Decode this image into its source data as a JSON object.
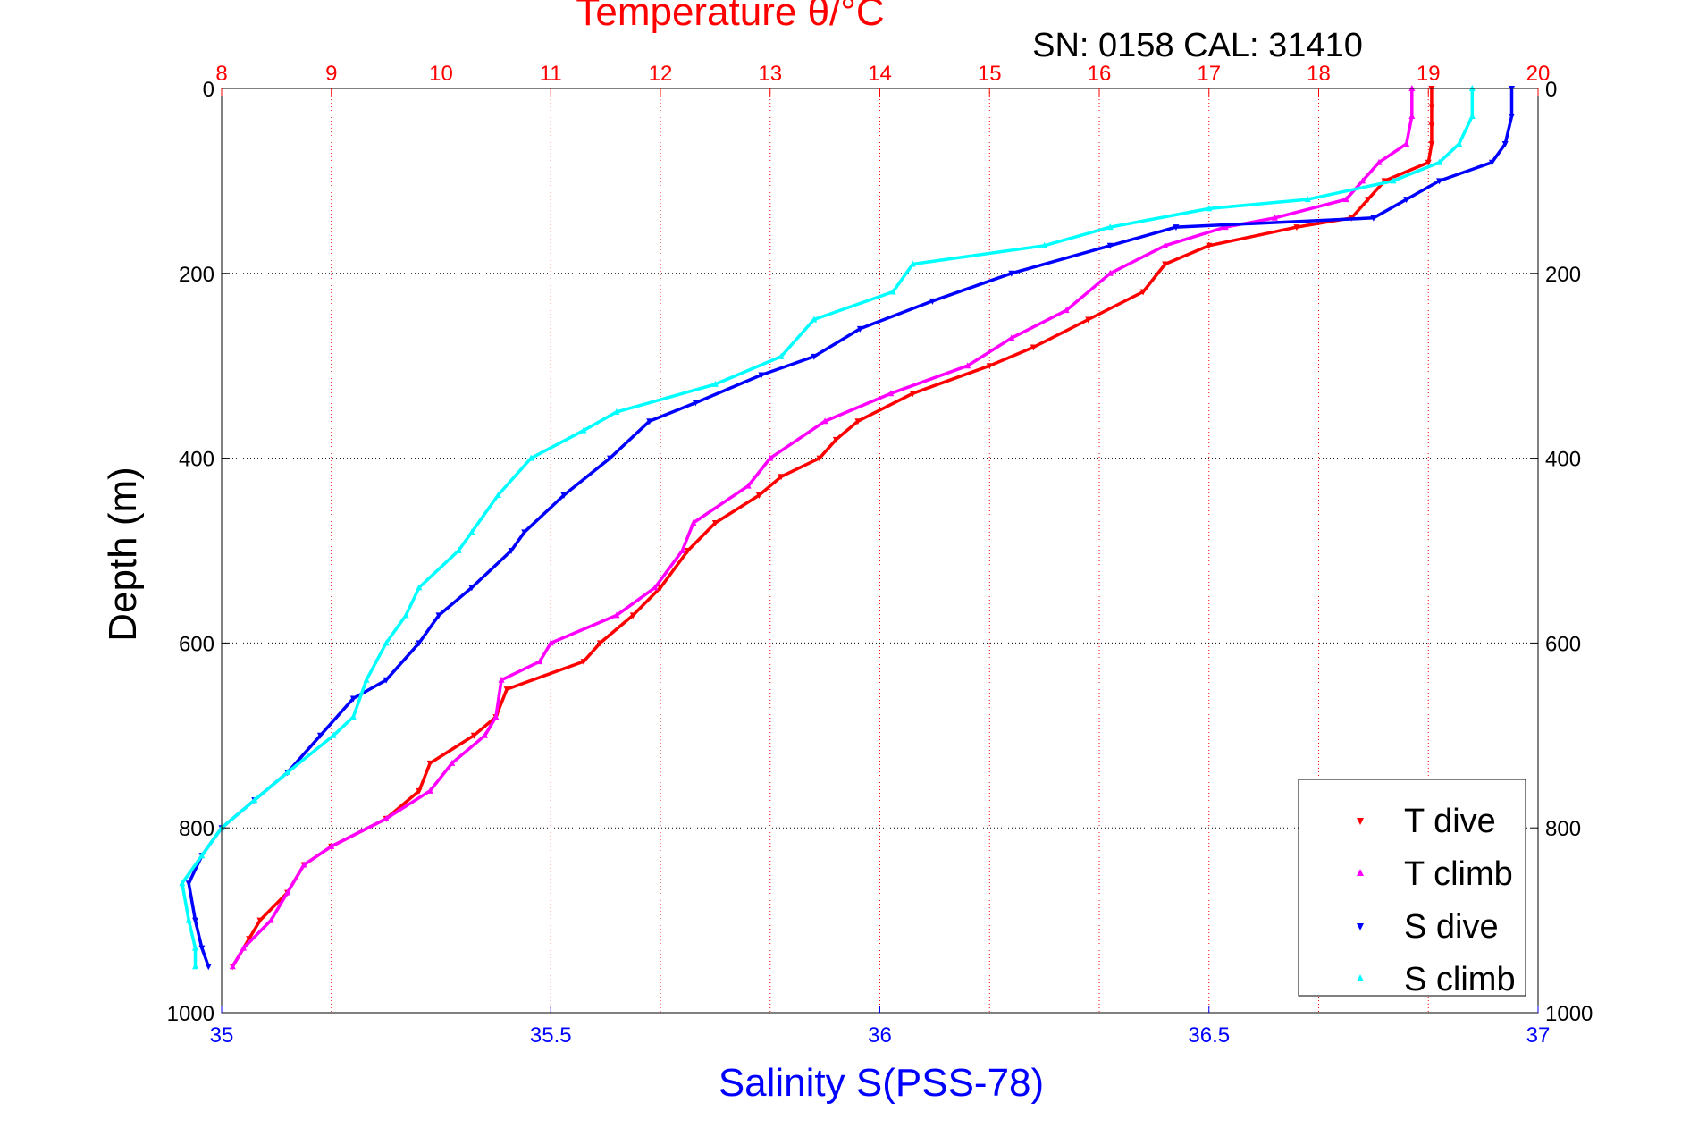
{
  "chart_data": {
    "type": "scatter",
    "title": "Temperature θ/°C",
    "subtitle": "SN: 0158  CAL: 31410",
    "ylabel": "Depth (m)",
    "xlabel": "Salinity S(PSS-78)",
    "top_axis": {
      "label": "Temperature θ/°C",
      "lim": [
        8,
        20
      ],
      "ticks": [
        "8",
        "9",
        "10",
        "11",
        "12",
        "13",
        "14",
        "15",
        "16",
        "17",
        "18",
        "19",
        "20"
      ]
    },
    "bottom_axis": {
      "label": "Salinity S(PSS-78)",
      "lim": [
        35,
        37
      ],
      "ticks": [
        "35",
        "35.5",
        "36",
        "36.5",
        "37"
      ]
    },
    "y_axis": {
      "lim": [
        0,
        1000
      ],
      "reversed": true,
      "ticks": [
        "0",
        "200",
        "400",
        "600",
        "800",
        "1000"
      ]
    },
    "grid": true,
    "legend_position": "bottom-right",
    "series": [
      {
        "name": "T dive",
        "axis": "temperature",
        "color": "#ff0000",
        "marker": "down-triangle",
        "points": [
          [
            0,
            19.03
          ],
          [
            20,
            19.03
          ],
          [
            40,
            19.03
          ],
          [
            60,
            19.03
          ],
          [
            80,
            19.0
          ],
          [
            100,
            18.6
          ],
          [
            120,
            18.45
          ],
          [
            140,
            18.3
          ],
          [
            150,
            17.8
          ],
          [
            170,
            17.0
          ],
          [
            190,
            16.6
          ],
          [
            220,
            16.4
          ],
          [
            250,
            15.9
          ],
          [
            280,
            15.4
          ],
          [
            300,
            15.0
          ],
          [
            330,
            14.3
          ],
          [
            360,
            13.8
          ],
          [
            380,
            13.6
          ],
          [
            400,
            13.45
          ],
          [
            420,
            13.1
          ],
          [
            440,
            12.9
          ],
          [
            470,
            12.5
          ],
          [
            500,
            12.25
          ],
          [
            540,
            12.0
          ],
          [
            570,
            11.75
          ],
          [
            600,
            11.45
          ],
          [
            620,
            11.3
          ],
          [
            650,
            10.6
          ],
          [
            680,
            10.5
          ],
          [
            700,
            10.3
          ],
          [
            730,
            9.9
          ],
          [
            760,
            9.8
          ],
          [
            790,
            9.5
          ],
          [
            820,
            9.0
          ],
          [
            840,
            8.75
          ],
          [
            870,
            8.6
          ],
          [
            900,
            8.35
          ],
          [
            920,
            8.25
          ],
          [
            950,
            8.1
          ]
        ]
      },
      {
        "name": "T climb",
        "axis": "temperature",
        "color": "#ff00ff",
        "marker": "up-triangle",
        "points": [
          [
            0,
            18.85
          ],
          [
            30,
            18.85
          ],
          [
            60,
            18.8
          ],
          [
            80,
            18.55
          ],
          [
            100,
            18.4
          ],
          [
            120,
            18.25
          ],
          [
            140,
            17.6
          ],
          [
            150,
            17.15
          ],
          [
            170,
            16.6
          ],
          [
            200,
            16.1
          ],
          [
            240,
            15.7
          ],
          [
            270,
            15.2
          ],
          [
            300,
            14.8
          ],
          [
            330,
            14.1
          ],
          [
            360,
            13.5
          ],
          [
            400,
            13.0
          ],
          [
            430,
            12.8
          ],
          [
            470,
            12.3
          ],
          [
            500,
            12.2
          ],
          [
            540,
            11.95
          ],
          [
            570,
            11.6
          ],
          [
            600,
            11.0
          ],
          [
            620,
            10.9
          ],
          [
            640,
            10.55
          ],
          [
            680,
            10.5
          ],
          [
            700,
            10.4
          ],
          [
            730,
            10.1
          ],
          [
            760,
            9.9
          ],
          [
            790,
            9.5
          ],
          [
            820,
            9.0
          ],
          [
            840,
            8.75
          ],
          [
            870,
            8.6
          ],
          [
            900,
            8.45
          ],
          [
            930,
            8.2
          ],
          [
            950,
            8.1
          ]
        ]
      },
      {
        "name": "S dive",
        "axis": "salinity",
        "color": "#0000ff",
        "marker": "down-triangle",
        "points": [
          [
            0,
            36.96
          ],
          [
            30,
            36.96
          ],
          [
            60,
            36.95
          ],
          [
            80,
            36.93
          ],
          [
            100,
            36.85
          ],
          [
            120,
            36.8
          ],
          [
            140,
            36.75
          ],
          [
            150,
            36.45
          ],
          [
            170,
            36.35
          ],
          [
            200,
            36.2
          ],
          [
            230,
            36.08
          ],
          [
            260,
            35.97
          ],
          [
            290,
            35.9
          ],
          [
            310,
            35.82
          ],
          [
            340,
            35.72
          ],
          [
            360,
            35.65
          ],
          [
            400,
            35.59
          ],
          [
            440,
            35.52
          ],
          [
            480,
            35.46
          ],
          [
            500,
            35.44
          ],
          [
            540,
            35.38
          ],
          [
            570,
            35.33
          ],
          [
            600,
            35.3
          ],
          [
            640,
            35.25
          ],
          [
            660,
            35.2
          ],
          [
            700,
            35.15
          ],
          [
            740,
            35.1
          ],
          [
            770,
            35.05
          ],
          [
            800,
            35.0
          ],
          [
            830,
            34.97
          ],
          [
            860,
            34.95
          ],
          [
            900,
            34.96
          ],
          [
            930,
            34.97
          ],
          [
            950,
            34.98
          ]
        ]
      },
      {
        "name": "S climb",
        "axis": "salinity",
        "color": "#00ffff",
        "marker": "up-triangle",
        "points": [
          [
            0,
            36.9
          ],
          [
            30,
            36.9
          ],
          [
            60,
            36.88
          ],
          [
            80,
            36.85
          ],
          [
            100,
            36.78
          ],
          [
            120,
            36.65
          ],
          [
            130,
            36.5
          ],
          [
            150,
            36.35
          ],
          [
            170,
            36.25
          ],
          [
            190,
            36.05
          ],
          [
            220,
            36.02
          ],
          [
            250,
            35.9
          ],
          [
            290,
            35.85
          ],
          [
            320,
            35.75
          ],
          [
            350,
            35.6
          ],
          [
            370,
            35.55
          ],
          [
            400,
            35.47
          ],
          [
            440,
            35.42
          ],
          [
            480,
            35.38
          ],
          [
            500,
            35.36
          ],
          [
            540,
            35.3
          ],
          [
            570,
            35.28
          ],
          [
            600,
            35.25
          ],
          [
            640,
            35.22
          ],
          [
            680,
            35.2
          ],
          [
            700,
            35.17
          ],
          [
            740,
            35.1
          ],
          [
            770,
            35.05
          ],
          [
            800,
            35.0
          ],
          [
            830,
            34.97
          ],
          [
            860,
            34.94
          ],
          [
            900,
            34.95
          ],
          [
            930,
            34.96
          ],
          [
            950,
            34.96
          ]
        ]
      }
    ]
  },
  "legend": {
    "items": [
      {
        "label": "T dive",
        "color": "#ff0000"
      },
      {
        "label": "T climb",
        "color": "#ff00ff"
      },
      {
        "label": "S dive",
        "color": "#0000ff"
      },
      {
        "label": "S climb",
        "color": "#00ffff"
      }
    ]
  }
}
